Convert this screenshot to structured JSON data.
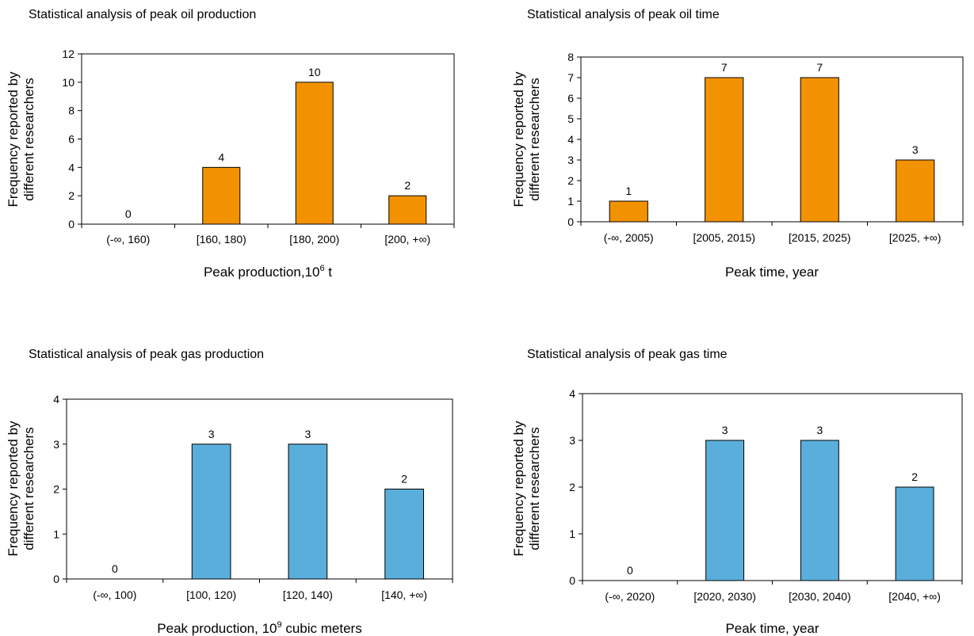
{
  "chart_data": [
    {
      "type": "bar",
      "title": "Statistical analysis of peak oil production",
      "xlabel": "Peak production,10",
      "xlabel_sup": "6",
      "xlabel_suffix": " t",
      "ylabel_line1": "Frequency reported by",
      "ylabel_line2": "different researchers",
      "categories": [
        "(-∞, 160)",
        "[160, 180)",
        "[180, 200)",
        "[200, +∞)"
      ],
      "values": [
        0,
        4,
        10,
        2
      ],
      "data_labels": [
        "0",
        "4",
        "10",
        "2"
      ],
      "yticks": [
        0,
        2,
        4,
        6,
        8,
        10,
        12
      ],
      "ylim": [
        0,
        12
      ],
      "bar_color": "#F39200",
      "grid": false
    },
    {
      "type": "bar",
      "title": "Statistical analysis of peak oil time",
      "xlabel": "Peak time, year",
      "xlabel_sup": "",
      "xlabel_suffix": "",
      "ylabel_line1": "Frequency reported by",
      "ylabel_line2": "different researchers",
      "categories": [
        "(-∞, 2005)",
        "[2005, 2015)",
        "[2015, 2025)",
        "[2025, +∞)"
      ],
      "values": [
        1,
        7,
        7,
        3
      ],
      "data_labels": [
        "1",
        "7",
        "7",
        "3"
      ],
      "yticks": [
        0,
        1,
        2,
        3,
        4,
        5,
        6,
        7,
        8
      ],
      "ylim": [
        0,
        8
      ],
      "bar_color": "#F39200",
      "grid": false
    },
    {
      "type": "bar",
      "title": "Statistical analysis of peak gas production",
      "xlabel": "Peak production, 10",
      "xlabel_sup": "9",
      "xlabel_suffix": " cubic meters",
      "ylabel_line1": "Frequency reported by",
      "ylabel_line2": "different researchers",
      "categories": [
        "(-∞, 100)",
        "[100, 120)",
        "[120, 140)",
        "[140, +∞)"
      ],
      "values": [
        0,
        3,
        3,
        2
      ],
      "data_labels": [
        "0",
        "3",
        "3",
        "2"
      ],
      "yticks": [
        0,
        1,
        2,
        3,
        4
      ],
      "ylim": [
        0,
        4
      ],
      "bar_color": "#5AAEDC",
      "grid": false
    },
    {
      "type": "bar",
      "title": "Statistical analysis of peak gas time",
      "xlabel": "Peak time, year",
      "xlabel_sup": "",
      "xlabel_suffix": "",
      "ylabel_line1": "Frequency reported by",
      "ylabel_line2": "different researchers",
      "categories": [
        "(-∞, 2020)",
        "[2020, 2030)",
        "[2030, 2040)",
        "[2040, +∞)"
      ],
      "values": [
        0,
        3,
        3,
        2
      ],
      "data_labels": [
        "0",
        "3",
        "3",
        "2"
      ],
      "yticks": [
        0,
        1,
        2,
        3,
        4
      ],
      "ylim": [
        0,
        4
      ],
      "bar_color": "#5AAEDC",
      "grid": false
    }
  ]
}
